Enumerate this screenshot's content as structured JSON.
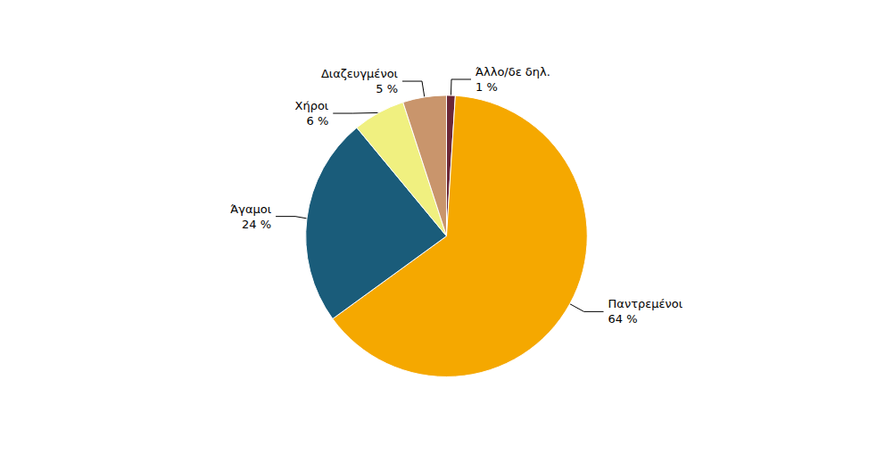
{
  "chart_data": {
    "type": "pie",
    "categories": [
      "Άλλο/δε δηλ.",
      "Παντρεμένοι",
      "Άγαμοι",
      "Χήροι",
      "Διαζευγμένοι"
    ],
    "values": [
      1,
      64,
      24,
      6,
      5
    ],
    "value_labels": [
      "1 %",
      "64 %",
      "24 %",
      "6 %",
      "5 %"
    ],
    "colors": [
      "#6B2737",
      "#F5A800",
      "#1A5C7A",
      "#F0F080",
      "#C9956C"
    ],
    "data_labels": true
  }
}
